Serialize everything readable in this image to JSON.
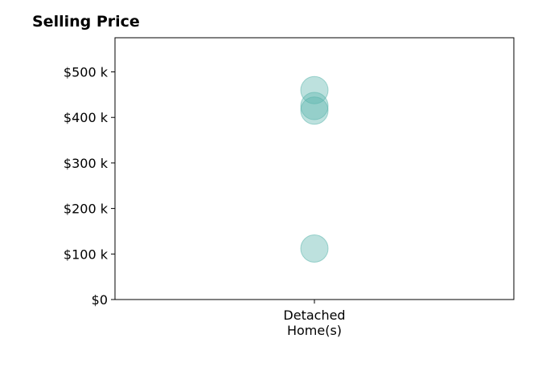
{
  "chart_data": {
    "type": "scatter",
    "title": "Selling Price",
    "xlabel": "",
    "ylabel": "",
    "categories": [
      "Detached\nHome(s)"
    ],
    "x_tick_lines": [
      "Detached",
      "Home(s)"
    ],
    "y_ticks": [
      0,
      100000,
      200000,
      300000,
      400000,
      500000
    ],
    "y_tick_labels": [
      "$0",
      "$100 k",
      "$200 k",
      "$300 k",
      "$400 k",
      "$500 k"
    ],
    "ylim": [
      0,
      575000
    ],
    "grid": false,
    "series": [
      {
        "category": "Detached\nHome(s)",
        "values": [
          460000,
          425000,
          415000,
          112000
        ],
        "color": "#5ab4ac",
        "opacity": 0.4
      }
    ]
  }
}
